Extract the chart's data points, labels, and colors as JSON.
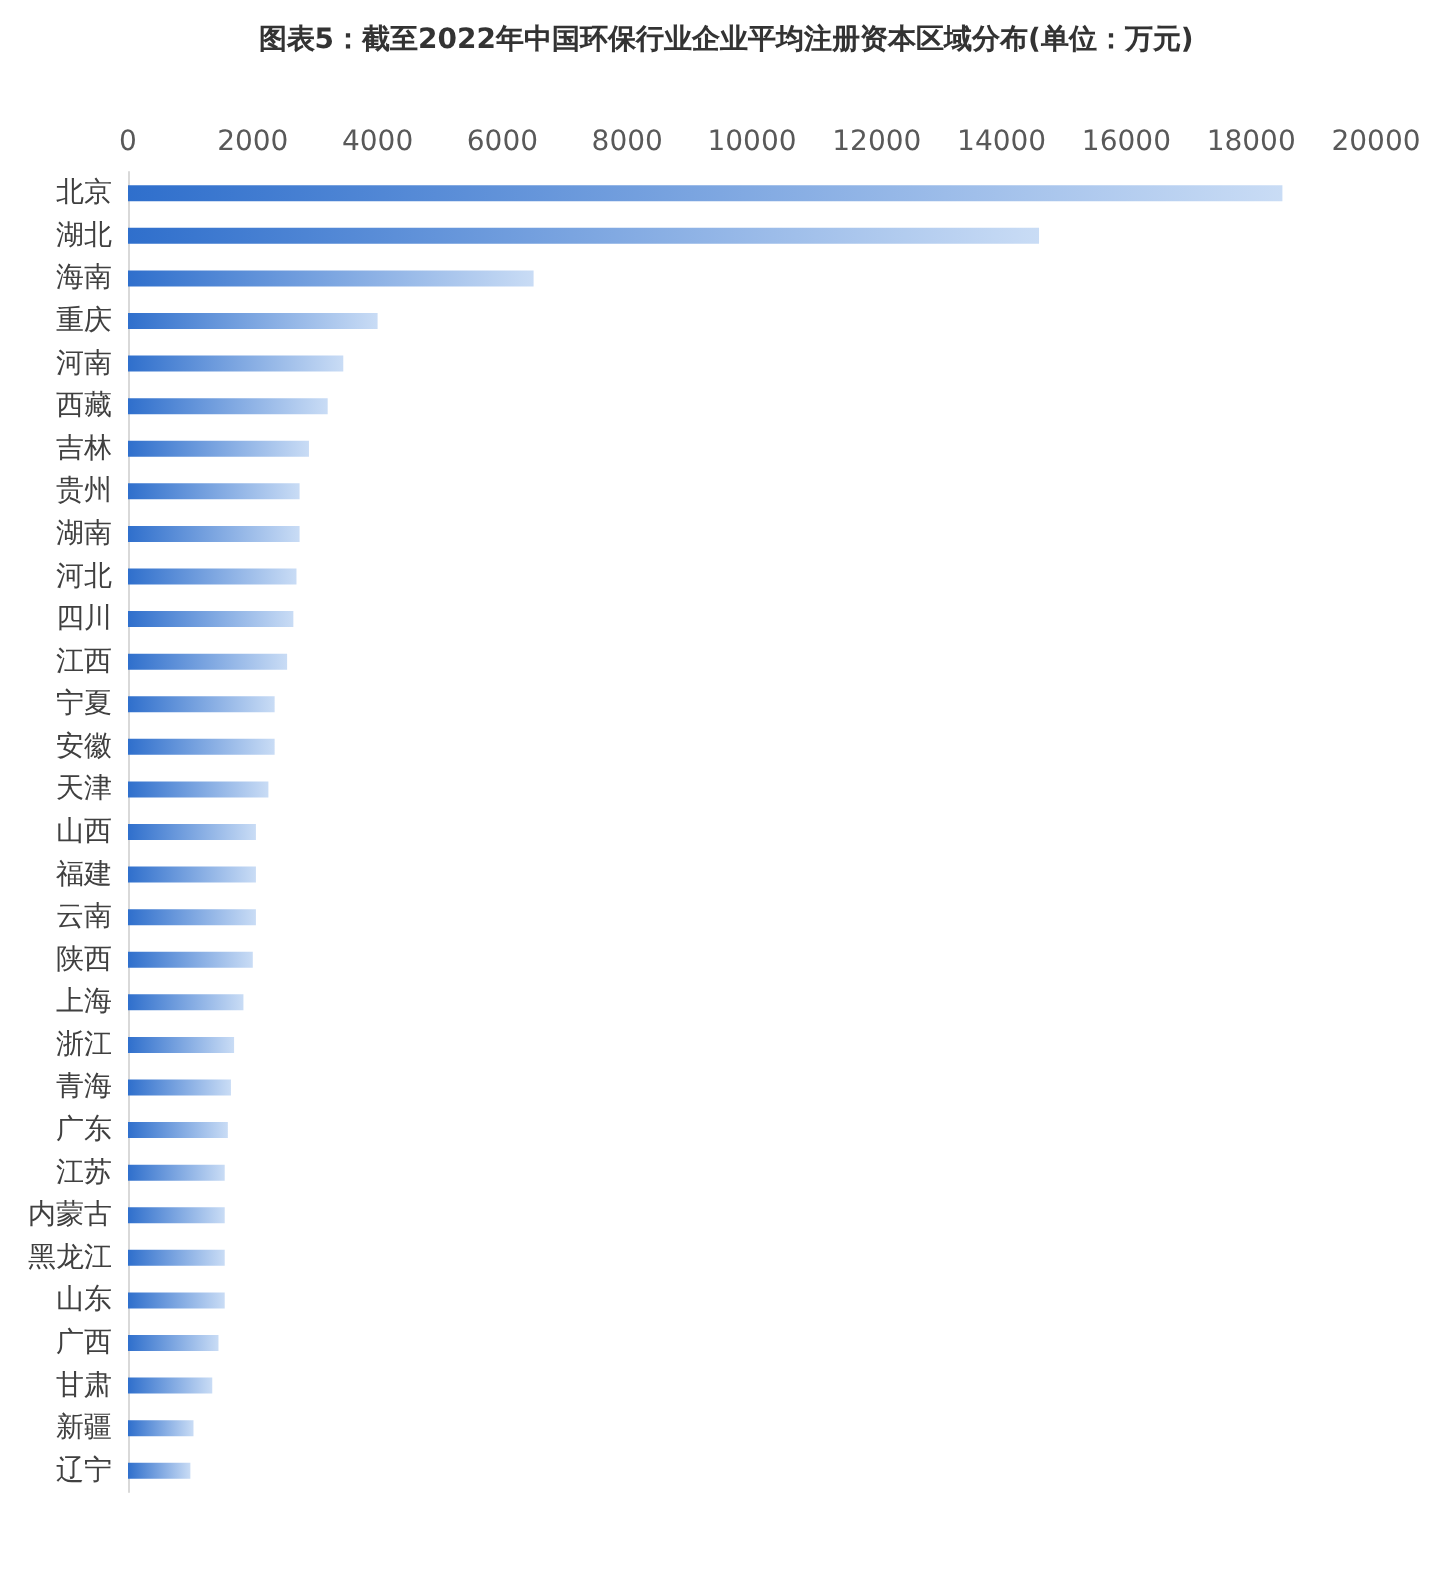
{
  "chart_data": {
    "type": "bar",
    "orientation": "horizontal",
    "title": "图表5：截至2022年中国环保行业企业平均注册资本区域分布(单位：万元)",
    "categories": [
      "北京",
      "湖北",
      "海南",
      "重庆",
      "河南",
      "西藏",
      "吉林",
      "贵州",
      "湖南",
      "河北",
      "四川",
      "江西",
      "宁夏",
      "安徽",
      "天津",
      "山西",
      "福建",
      "云南",
      "陕西",
      "上海",
      "浙江",
      "青海",
      "广东",
      "江苏",
      "内蒙古",
      "黑龙江",
      "山东",
      "广西",
      "甘肃",
      "新疆",
      "辽宁"
    ],
    "values": [
      18500,
      14600,
      6500,
      4000,
      3450,
      3200,
      2900,
      2750,
      2750,
      2700,
      2650,
      2550,
      2350,
      2350,
      2250,
      2050,
      2050,
      2050,
      2000,
      1850,
      1700,
      1650,
      1600,
      1550,
      1550,
      1550,
      1550,
      1450,
      1350,
      1050,
      1000
    ],
    "color": "#2f6fcc",
    "xlim": [
      0,
      20000
    ],
    "xticks": [
      0,
      2000,
      4000,
      6000,
      8000,
      10000,
      12000,
      14000,
      16000,
      18000,
      20000
    ],
    "grid": false
  }
}
